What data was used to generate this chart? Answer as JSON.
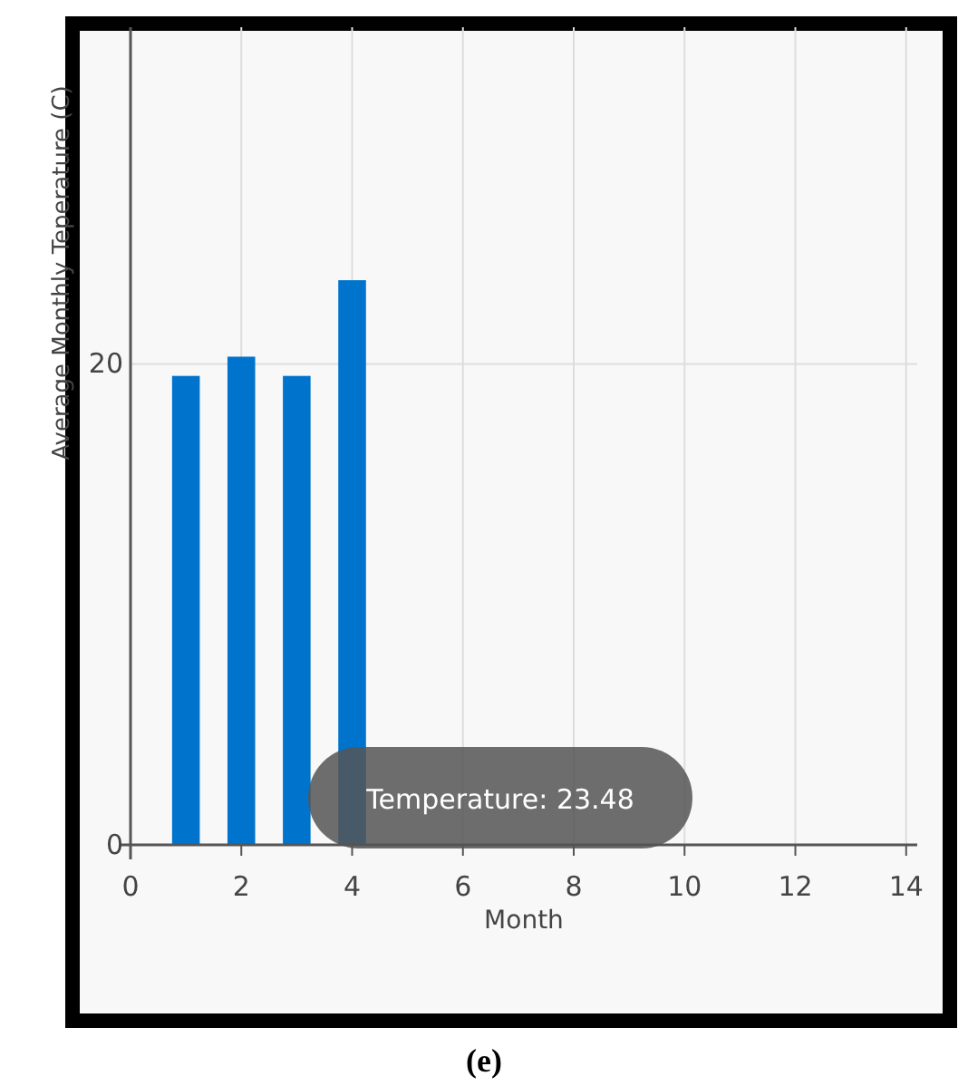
{
  "chart_data": {
    "type": "bar",
    "xlabel": "Month",
    "ylabel": "Average Monthly Teperature (C)",
    "x": [
      1,
      2,
      3,
      4
    ],
    "values": [
      19.5,
      20.3,
      19.5,
      23.48
    ],
    "color": "#0074cc",
    "xlim": [
      0,
      14.2
    ],
    "xticks": [
      0,
      2,
      4,
      6,
      8,
      10,
      12,
      14
    ],
    "ylim": [
      0,
      34
    ],
    "yticks": [
      0,
      20
    ],
    "grid": true,
    "annotations": [
      "Temperature: 23.48",
      "(e)"
    ]
  }
}
